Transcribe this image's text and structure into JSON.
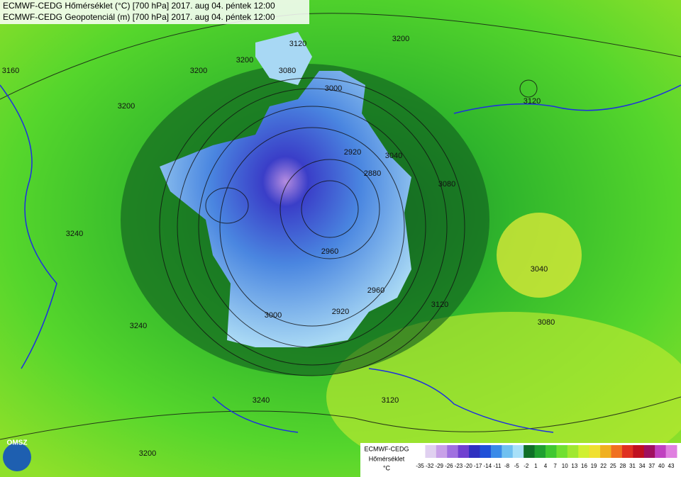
{
  "header": {
    "lines": [
      "ECMWF-CEDG Hőmérséklet (°C) [700 hPa] 2017. aug 04. péntek 12:00",
      "ECMWF-CEDG Geopotenciál (m) [700 hPa] 2017. aug 04. péntek 12:00"
    ]
  },
  "contour_labels": [
    "3160",
    "3200",
    "3200",
    "3120",
    "3200",
    "3080",
    "3000",
    "3200",
    "3120",
    "2920",
    "2880",
    "3040",
    "3080",
    "3040",
    "2960",
    "2960",
    "3120",
    "3080",
    "3000",
    "2920",
    "3240",
    "3240",
    "3240",
    "3120",
    "3200"
  ],
  "logo": {
    "text": "OMSZ"
  },
  "legend": {
    "title": "ECMWF-CEDG",
    "variable": "Hőmérséklet",
    "unit": "°C",
    "ticks": [
      -35,
      -32,
      -29,
      -26,
      -23,
      -20,
      -17,
      -14,
      -11,
      -8,
      -5,
      -2,
      1,
      4,
      7,
      10,
      13,
      16,
      19,
      22,
      25,
      28,
      31,
      34,
      37,
      40,
      43
    ]
  }
}
